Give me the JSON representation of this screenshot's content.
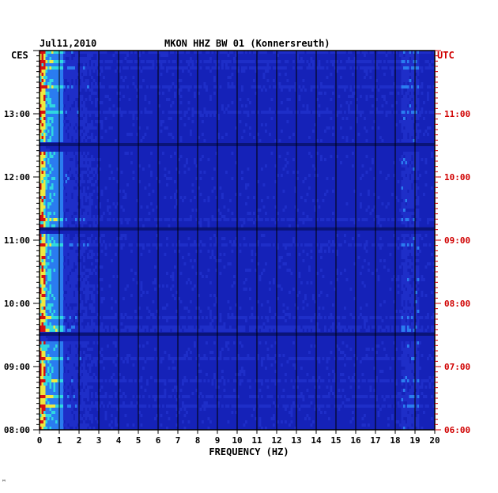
{
  "header": {
    "date": "Jul11,2010",
    "station": "MKON HHZ BW 01 (Konnersreuth)",
    "left_timezone": "CES",
    "right_timezone": "UTC"
  },
  "footer": {
    "mark": "ᴹ"
  },
  "colors": {
    "right_axis": "#d00000",
    "background": "#1522b8",
    "grid": "#000000"
  },
  "chart_data": {
    "type": "heatmap",
    "title": "MKON HHZ BW 01 (Konnersreuth)",
    "xlabel": "FREQUENCY (HZ)",
    "xlim": [
      0,
      20
    ],
    "x_ticks": [
      "0",
      "1",
      "2",
      "3",
      "4",
      "5",
      "6",
      "7",
      "8",
      "9",
      "10",
      "11",
      "12",
      "13",
      "14",
      "15",
      "16",
      "17",
      "18",
      "19",
      "20"
    ],
    "ylim_local": [
      "08:00",
      "14:00"
    ],
    "y_ticks_local": [
      "08:00",
      "09:00",
      "10:00",
      "11:00",
      "12:00",
      "13:00"
    ],
    "y_ticks_utc": [
      "06:00",
      "07:00",
      "08:00",
      "09:00",
      "10:00",
      "11:00"
    ],
    "colormap": [
      "#000080",
      "#1e2ec8",
      "#2a7cf0",
      "#2fd8e0",
      "#f0e840",
      "#d81010"
    ],
    "high_energy_bands_hz": [
      [
        0,
        1.2
      ],
      [
        18.2,
        19.2
      ]
    ],
    "dark_gap_times_local": [
      "09:30",
      "11:10",
      "12:30"
    ]
  }
}
